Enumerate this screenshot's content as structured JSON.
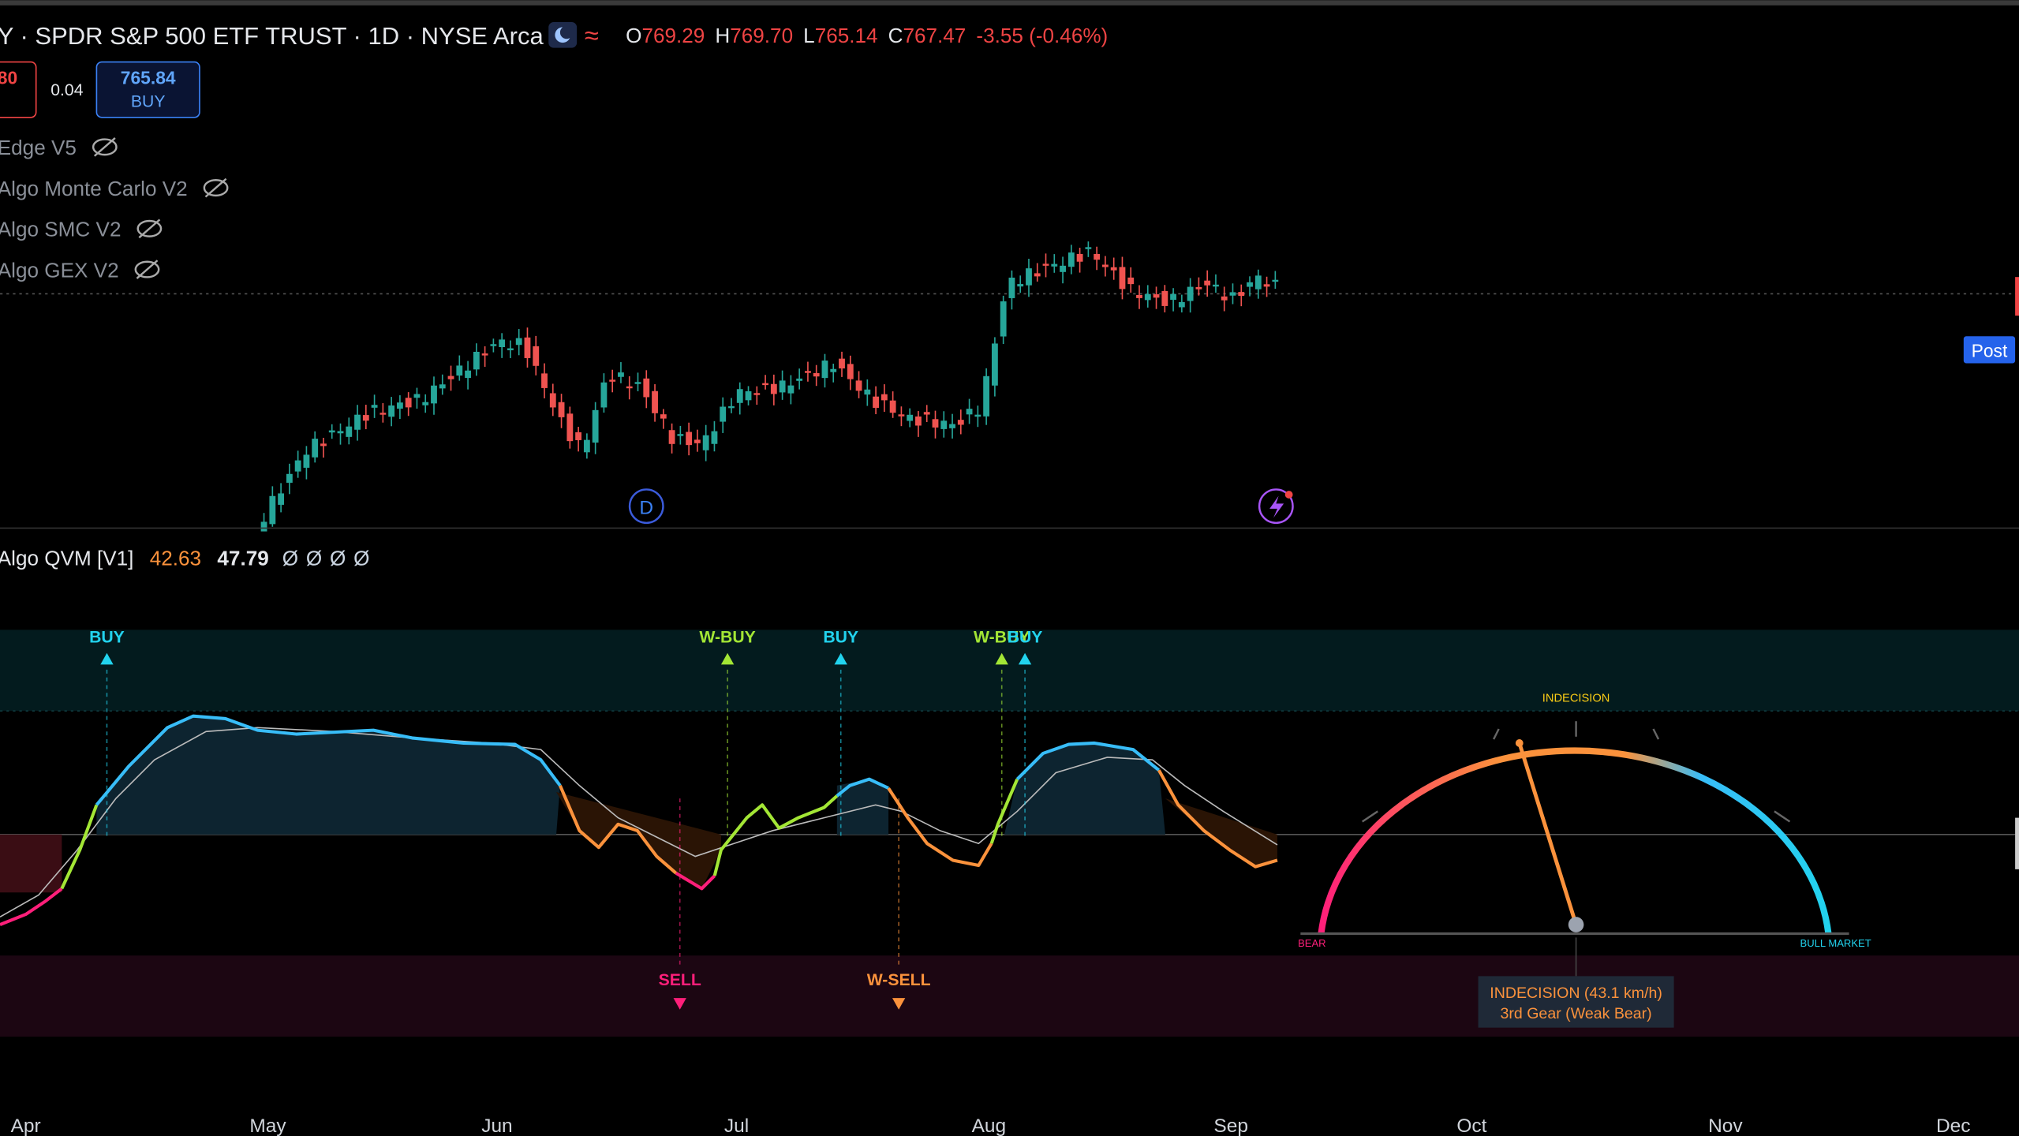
{
  "header": {
    "symbol": "Y · SPDR S&P 500 ETF TRUST · 1D · NYSE Arca",
    "ohlc": [
      {
        "key": "O",
        "value": "769.29"
      },
      {
        "key": "H",
        "value": "769.70"
      },
      {
        "key": "L",
        "value": "765.14"
      },
      {
        "key": "C",
        "value": "767.47"
      }
    ],
    "change": "-3.55 (-0.46%)"
  },
  "trade": {
    "sell_price": "80",
    "spread": "0.04",
    "buy_price": "765.84",
    "buy_label": "BUY"
  },
  "indicators": [
    "Edge V5",
    "Algo Monte Carlo V2",
    "Algo SMC V2",
    "Algo GEX V2"
  ],
  "post_label": "Post",
  "event_marker": "D",
  "oscillator": {
    "name": "Algo QVM [V1]",
    "value1": "42.63",
    "value2": "47.79",
    "nulls": [
      "Ø",
      "Ø",
      "Ø",
      "Ø"
    ]
  },
  "signals": [
    {
      "label": "BUY",
      "color": "#22d3ee"
    },
    {
      "label": "W-BUY",
      "color": "#a3e635"
    },
    {
      "label": "BUY",
      "color": "#22d3ee"
    },
    {
      "label": "W-BUY",
      "color": "#a3e635"
    },
    {
      "label": "BUY",
      "color": "#22d3ee"
    },
    {
      "label": "SELL",
      "color": "#ff1f7a"
    },
    {
      "label": "W-SELL",
      "color": "#fb923c"
    }
  ],
  "gauge": {
    "top_label": "INDECISION",
    "left_label": "BEAR",
    "right_label": "BULL MARKET",
    "tooltip_line1": "INDECISION (43.1 km/h)",
    "tooltip_line2": "3rd Gear (Weak Bear)"
  },
  "x_axis": {
    "months": [
      "Apr",
      "May",
      "Jun",
      "Jul",
      "Aug",
      "Sep",
      "Oct",
      "Nov",
      "Dec"
    ]
  }
}
